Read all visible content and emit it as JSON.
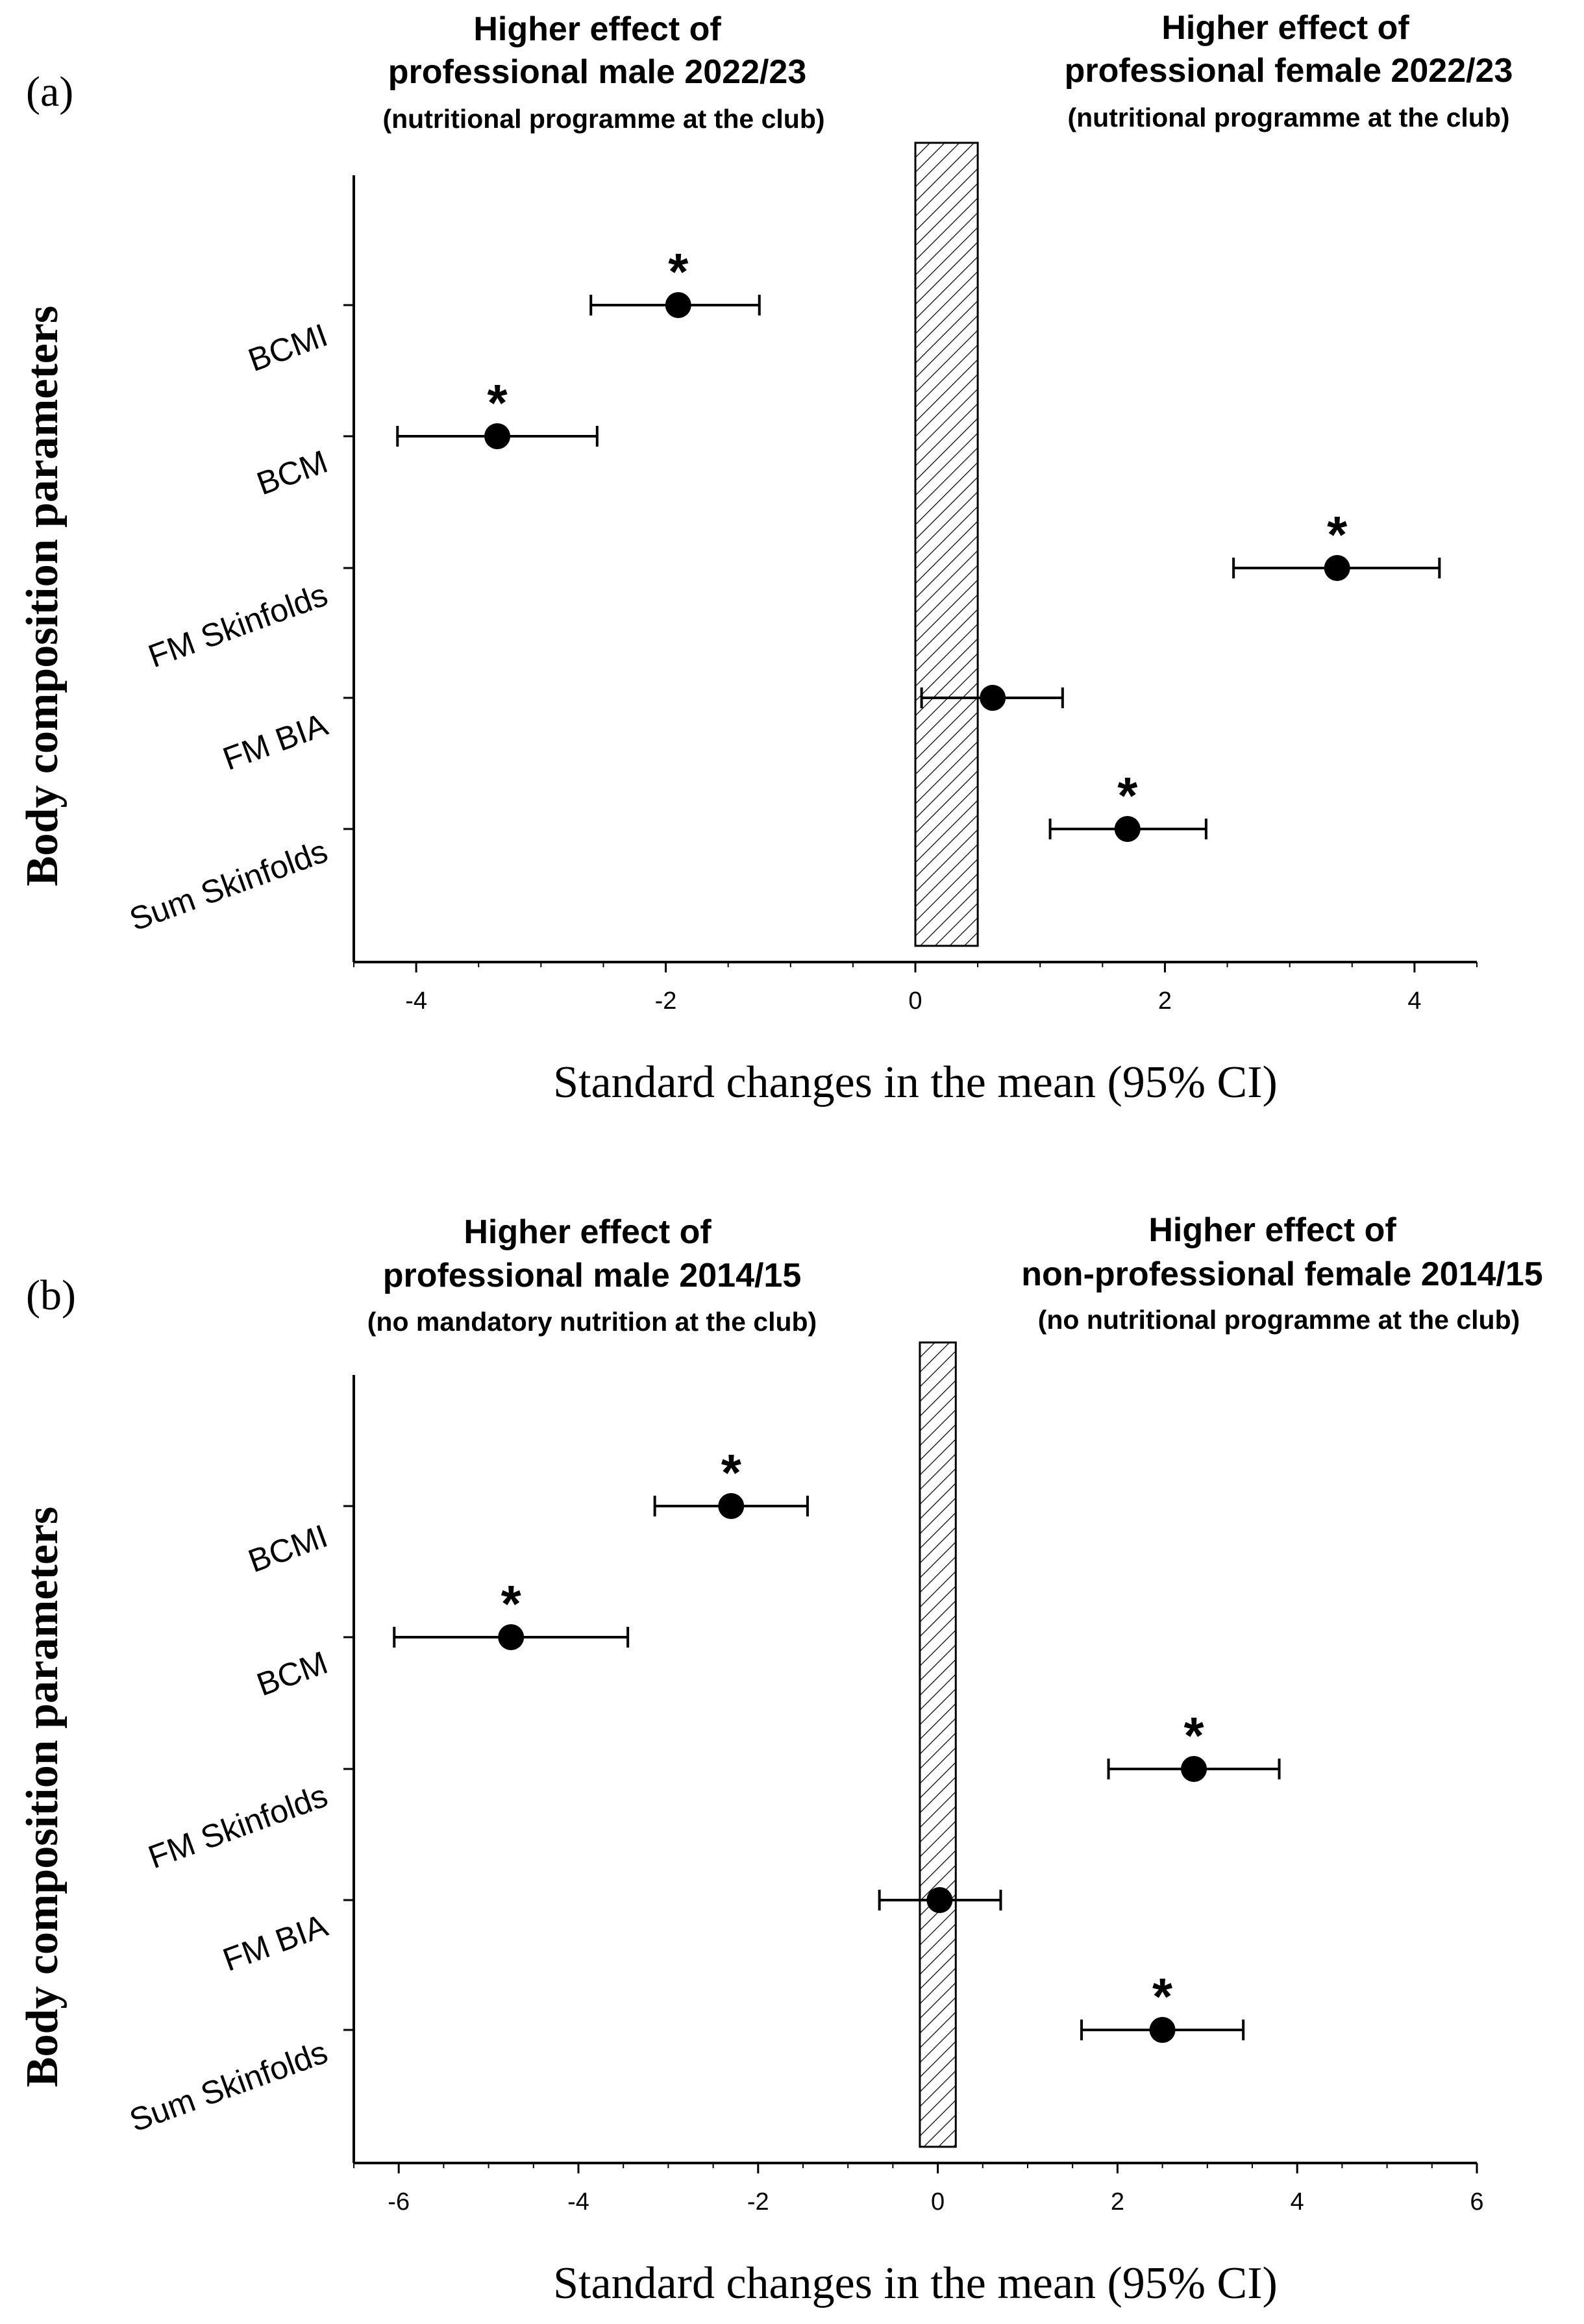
{
  "chart_data": [
    {
      "type": "forest",
      "panel_label": "(a)",
      "left_header": {
        "title_line1": "Higher effect of",
        "title_line2": "professional male 2022/23",
        "subtitle": "(nutritional programme at the club)"
      },
      "right_header": {
        "title_line1": "Higher effect of",
        "title_line2": "professional female 2022/23",
        "subtitle": "(nutritional programme at the club)"
      },
      "ylabel": "Body composition parameters",
      "xlabel": "Standard changes in the mean (95% CI)",
      "xlim": [
        -4.5,
        4.5
      ],
      "xticks": [
        -4,
        -2,
        0,
        2,
        4
      ],
      "xtick_labels": [
        "-4",
        "-2",
        "0",
        "2",
        "4"
      ],
      "trivial_band": [
        0,
        0.5
      ],
      "categories": [
        "BCMI",
        "BCM",
        "FM Skinfolds",
        "FM BIA",
        "Sum Skinfolds"
      ],
      "points": [
        {
          "category": "BCMI",
          "mean": -1.9,
          "lower": -2.6,
          "upper": -1.25,
          "significant": true,
          "marker": "*"
        },
        {
          "category": "BCM",
          "mean": -3.35,
          "lower": -4.15,
          "upper": -2.55,
          "significant": true,
          "marker": "*"
        },
        {
          "category": "FM Skinfolds",
          "mean": 3.38,
          "lower": 2.55,
          "upper": 4.2,
          "significant": true,
          "marker": "*"
        },
        {
          "category": "FM BIA",
          "mean": 0.62,
          "lower": 0.05,
          "upper": 1.18,
          "significant": false,
          "marker": ""
        },
        {
          "category": "Sum Skinfolds",
          "mean": 1.7,
          "lower": 1.08,
          "upper": 2.33,
          "significant": true,
          "marker": "*"
        }
      ]
    },
    {
      "type": "forest",
      "panel_label": "(b)",
      "left_header": {
        "title_line1": "Higher effect of",
        "title_line2": "professional male 2014/15",
        "subtitle": "(no mandatory nutrition at the club)"
      },
      "right_header": {
        "title_line1": "Higher effect of",
        "title_line2": "non-professional female 2014/15",
        "subtitle": "(no nutritional programme at the club)"
      },
      "ylabel": "Body composition parameters",
      "xlabel": "Standard changes in the mean (95% CI)",
      "xlim": [
        -6.5,
        6
      ],
      "xticks": [
        -6,
        -4,
        -2,
        0,
        2,
        4,
        6
      ],
      "xtick_labels": [
        "-6",
        "-4",
        "-2",
        "0",
        "2",
        "4",
        "6"
      ],
      "trivial_band": [
        -0.2,
        0.2
      ],
      "categories": [
        "BCMI",
        "BCM",
        "FM Skinfolds",
        "FM BIA",
        "Sum Skinfolds"
      ],
      "points": [
        {
          "category": "BCMI",
          "mean": -2.3,
          "lower": -3.15,
          "upper": -1.45,
          "significant": true,
          "marker": "*"
        },
        {
          "category": "BCM",
          "mean": -4.75,
          "lower": -6.05,
          "upper": -3.45,
          "significant": true,
          "marker": "*"
        },
        {
          "category": "FM Skinfolds",
          "mean": 2.85,
          "lower": 1.9,
          "upper": 3.8,
          "significant": true,
          "marker": "*"
        },
        {
          "category": "FM BIA",
          "mean": 0.02,
          "lower": -0.65,
          "upper": 0.7,
          "significant": false,
          "marker": ""
        },
        {
          "category": "Sum Skinfolds",
          "mean": 2.5,
          "lower": 1.6,
          "upper": 3.4,
          "significant": true,
          "marker": "*"
        }
      ]
    }
  ]
}
